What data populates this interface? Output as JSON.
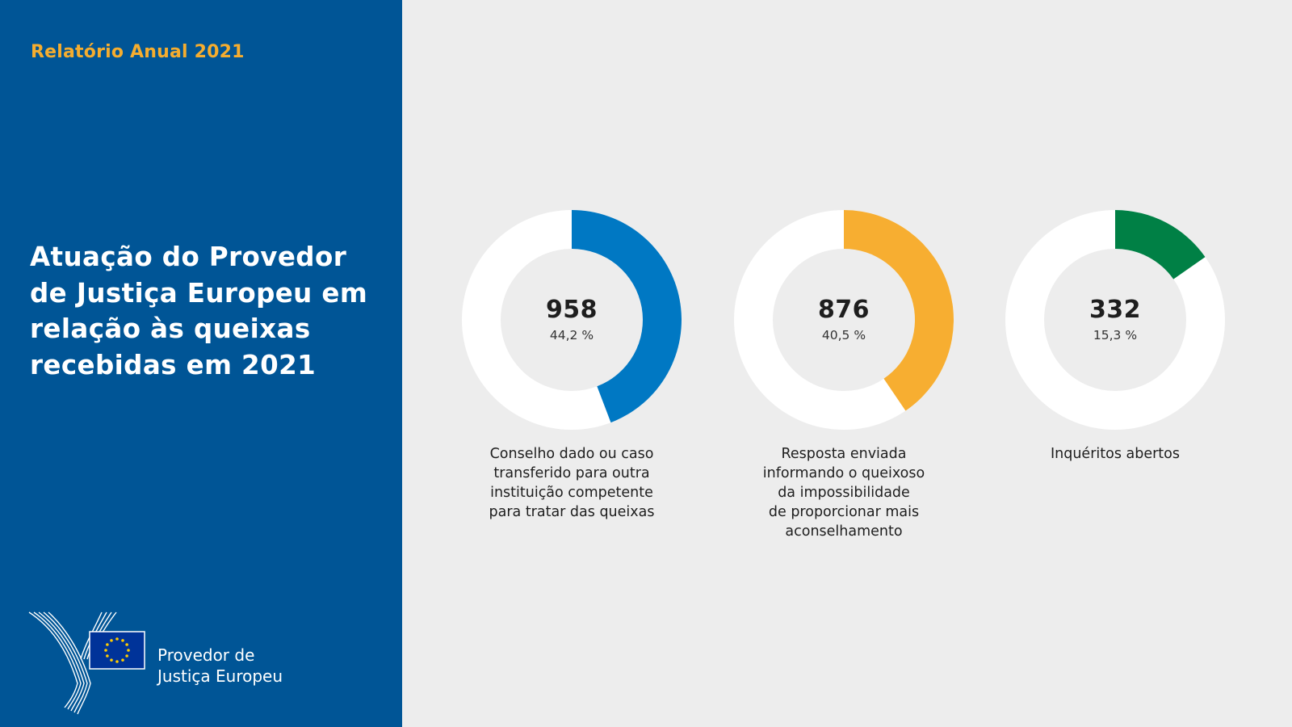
{
  "sidebar": {
    "report_label": "Relatório Anual 2021",
    "title": "Atuação do Provedor de Justiça Europeu em relação às queixas recebidas em 2021",
    "logo_text_line1": "Provedor de",
    "logo_text_line2": "Justiça Europeu"
  },
  "colors": {
    "sidebar_bg": "#005596",
    "accent_gold": "#f5ad2f",
    "track": "#ffffff",
    "series": [
      "#0078c3",
      "#f7ae31",
      "#008045"
    ]
  },
  "chart_data": [
    {
      "type": "pie",
      "value_label": "958",
      "percent_label": "44,2 %",
      "value": 958,
      "percent": 44.2,
      "caption": "Conselho dado ou caso\ntransferido para outra\ninstituição competente\npara tratar das queixas",
      "color": "#0078c3"
    },
    {
      "type": "pie",
      "value_label": "876",
      "percent_label": "40,5 %",
      "value": 876,
      "percent": 40.5,
      "caption": "Resposta enviada\ninformando o queixoso\nda impossibilidade\nde proporcionar mais\naconselhamento",
      "color": "#f7ae31"
    },
    {
      "type": "pie",
      "value_label": "332",
      "percent_label": "15,3 %",
      "value": 332,
      "percent": 15.3,
      "caption": "Inquéritos abertos",
      "color": "#008045"
    }
  ]
}
